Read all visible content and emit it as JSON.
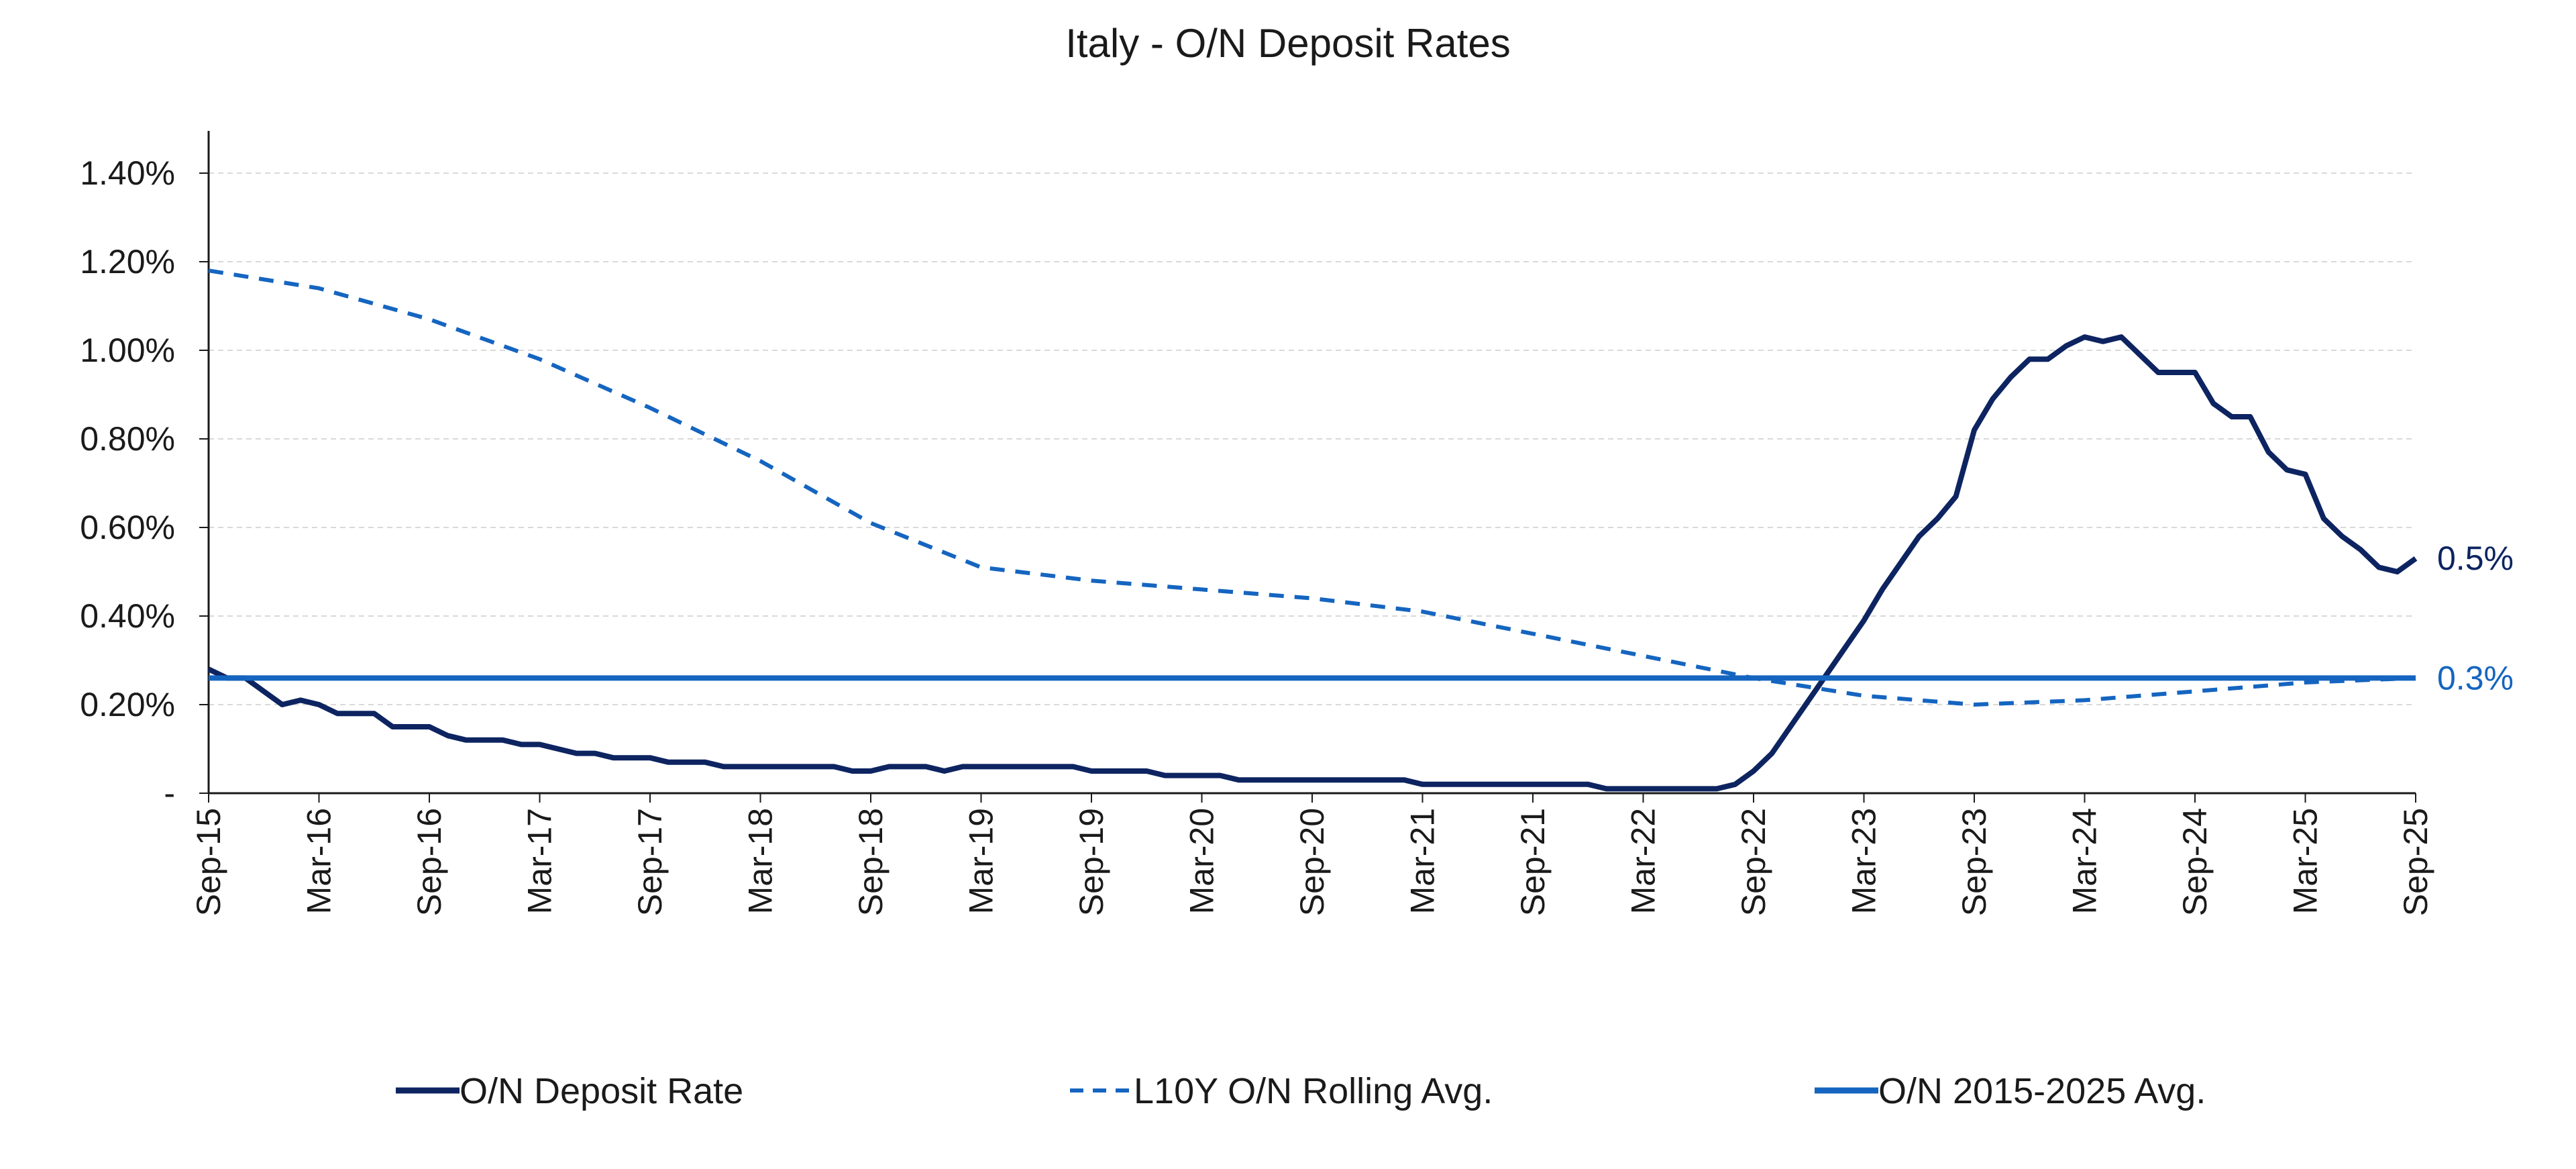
{
  "chart_data": {
    "type": "line",
    "title": "Italy - O/N Deposit Rates",
    "xlabel": "",
    "ylabel": "",
    "ylim": [
      0,
      1.4
    ],
    "y_ticks": [
      {
        "value": 0,
        "label": "-"
      },
      {
        "value": 0.2,
        "label": "0.20%"
      },
      {
        "value": 0.4,
        "label": "0.40%"
      },
      {
        "value": 0.6,
        "label": "0.60%"
      },
      {
        "value": 0.8,
        "label": "0.80%"
      },
      {
        "value": 1.0,
        "label": "1.00%"
      },
      {
        "value": 1.2,
        "label": "1.20%"
      },
      {
        "value": 1.4,
        "label": "1.40%"
      }
    ],
    "x_ticks": [
      "2015-09",
      "2016-03",
      "2016-09",
      "2017-03",
      "2017-09",
      "2018-03",
      "2018-09",
      "2019-03",
      "2019-09",
      "2020-03",
      "2020-09",
      "2021-03",
      "2021-09",
      "2022-03",
      "2022-09",
      "2023-03",
      "2023-09",
      "2024-03",
      "2024-09",
      "2025-03",
      "2025-09"
    ],
    "x_tick_labels": [
      "Sep-15",
      "Mar-16",
      "Sep-16",
      "Mar-17",
      "Sep-17",
      "Mar-18",
      "Sep-18",
      "Mar-19",
      "Sep-19",
      "Mar-20",
      "Sep-20",
      "Mar-21",
      "Sep-21",
      "Mar-22",
      "Sep-22",
      "Mar-23",
      "Sep-23",
      "Mar-24",
      "Sep-24",
      "Mar-25",
      "Sep-25"
    ],
    "grid": true,
    "legend_position": "bottom",
    "series": [
      {
        "name": "O/N Deposit Rate",
        "color": "#0d2461",
        "style": "solid",
        "end_label": "0.5%",
        "points": [
          [
            "2015-09",
            0.28
          ],
          [
            "2015-10",
            0.26
          ],
          [
            "2015-11",
            0.26
          ],
          [
            "2015-12",
            0.23
          ],
          [
            "2016-01",
            0.2
          ],
          [
            "2016-02",
            0.21
          ],
          [
            "2016-03",
            0.2
          ],
          [
            "2016-04",
            0.18
          ],
          [
            "2016-05",
            0.18
          ],
          [
            "2016-06",
            0.18
          ],
          [
            "2016-07",
            0.15
          ],
          [
            "2016-08",
            0.15
          ],
          [
            "2016-09",
            0.15
          ],
          [
            "2016-10",
            0.13
          ],
          [
            "2016-11",
            0.12
          ],
          [
            "2016-12",
            0.12
          ],
          [
            "2017-01",
            0.12
          ],
          [
            "2017-02",
            0.11
          ],
          [
            "2017-03",
            0.11
          ],
          [
            "2017-04",
            0.1
          ],
          [
            "2017-05",
            0.09
          ],
          [
            "2017-06",
            0.09
          ],
          [
            "2017-07",
            0.08
          ],
          [
            "2017-08",
            0.08
          ],
          [
            "2017-09",
            0.08
          ],
          [
            "2017-10",
            0.07
          ],
          [
            "2017-11",
            0.07
          ],
          [
            "2017-12",
            0.07
          ],
          [
            "2018-01",
            0.06
          ],
          [
            "2018-02",
            0.06
          ],
          [
            "2018-03",
            0.06
          ],
          [
            "2018-04",
            0.06
          ],
          [
            "2018-05",
            0.06
          ],
          [
            "2018-06",
            0.06
          ],
          [
            "2018-07",
            0.06
          ],
          [
            "2018-08",
            0.05
          ],
          [
            "2018-09",
            0.05
          ],
          [
            "2018-10",
            0.06
          ],
          [
            "2018-11",
            0.06
          ],
          [
            "2018-12",
            0.06
          ],
          [
            "2019-01",
            0.05
          ],
          [
            "2019-02",
            0.06
          ],
          [
            "2019-03",
            0.06
          ],
          [
            "2019-04",
            0.06
          ],
          [
            "2019-05",
            0.06
          ],
          [
            "2019-06",
            0.06
          ],
          [
            "2019-07",
            0.06
          ],
          [
            "2019-08",
            0.06
          ],
          [
            "2019-09",
            0.05
          ],
          [
            "2019-10",
            0.05
          ],
          [
            "2019-11",
            0.05
          ],
          [
            "2019-12",
            0.05
          ],
          [
            "2020-01",
            0.04
          ],
          [
            "2020-02",
            0.04
          ],
          [
            "2020-03",
            0.04
          ],
          [
            "2020-04",
            0.04
          ],
          [
            "2020-05",
            0.03
          ],
          [
            "2020-06",
            0.03
          ],
          [
            "2020-07",
            0.03
          ],
          [
            "2020-08",
            0.03
          ],
          [
            "2020-09",
            0.03
          ],
          [
            "2020-10",
            0.03
          ],
          [
            "2020-11",
            0.03
          ],
          [
            "2020-12",
            0.03
          ],
          [
            "2021-01",
            0.03
          ],
          [
            "2021-02",
            0.03
          ],
          [
            "2021-03",
            0.02
          ],
          [
            "2021-04",
            0.02
          ],
          [
            "2021-05",
            0.02
          ],
          [
            "2021-06",
            0.02
          ],
          [
            "2021-07",
            0.02
          ],
          [
            "2021-08",
            0.02
          ],
          [
            "2021-09",
            0.02
          ],
          [
            "2021-10",
            0.02
          ],
          [
            "2021-11",
            0.02
          ],
          [
            "2021-12",
            0.02
          ],
          [
            "2022-01",
            0.01
          ],
          [
            "2022-02",
            0.01
          ],
          [
            "2022-03",
            0.01
          ],
          [
            "2022-04",
            0.01
          ],
          [
            "2022-05",
            0.01
          ],
          [
            "2022-06",
            0.01
          ],
          [
            "2022-07",
            0.01
          ],
          [
            "2022-08",
            0.02
          ],
          [
            "2022-09",
            0.05
          ],
          [
            "2022-10",
            0.09
          ],
          [
            "2022-11",
            0.15
          ],
          [
            "2022-12",
            0.21
          ],
          [
            "2023-01",
            0.27
          ],
          [
            "2023-02",
            0.33
          ],
          [
            "2023-03",
            0.39
          ],
          [
            "2023-04",
            0.46
          ],
          [
            "2023-05",
            0.52
          ],
          [
            "2023-06",
            0.58
          ],
          [
            "2023-07",
            0.62
          ],
          [
            "2023-08",
            0.67
          ],
          [
            "2023-09",
            0.82
          ],
          [
            "2023-10",
            0.89
          ],
          [
            "2023-11",
            0.94
          ],
          [
            "2023-12",
            0.98
          ],
          [
            "2024-01",
            0.98
          ],
          [
            "2024-02",
            1.01
          ],
          [
            "2024-03",
            1.03
          ],
          [
            "2024-04",
            1.02
          ],
          [
            "2024-05",
            1.03
          ],
          [
            "2024-06",
            0.99
          ],
          [
            "2024-07",
            0.95
          ],
          [
            "2024-08",
            0.95
          ],
          [
            "2024-09",
            0.95
          ],
          [
            "2024-10",
            0.88
          ],
          [
            "2024-11",
            0.85
          ],
          [
            "2024-12",
            0.85
          ],
          [
            "2025-01",
            0.77
          ],
          [
            "2025-02",
            0.73
          ],
          [
            "2025-03",
            0.72
          ],
          [
            "2025-04",
            0.62
          ],
          [
            "2025-05",
            0.58
          ],
          [
            "2025-06",
            0.55
          ],
          [
            "2025-07",
            0.51
          ],
          [
            "2025-08",
            0.5
          ],
          [
            "2025-09",
            0.53
          ]
        ]
      },
      {
        "name": "L10Y O/N Rolling Avg.",
        "color": "#1565c0",
        "style": "dashed",
        "points": [
          [
            "2015-09",
            1.18
          ],
          [
            "2016-03",
            1.14
          ],
          [
            "2016-09",
            1.07
          ],
          [
            "2017-03",
            0.98
          ],
          [
            "2017-09",
            0.87
          ],
          [
            "2018-03",
            0.75
          ],
          [
            "2018-09",
            0.61
          ],
          [
            "2019-03",
            0.51
          ],
          [
            "2019-09",
            0.48
          ],
          [
            "2020-03",
            0.46
          ],
          [
            "2020-09",
            0.44
          ],
          [
            "2021-03",
            0.41
          ],
          [
            "2021-09",
            0.36
          ],
          [
            "2022-03",
            0.31
          ],
          [
            "2022-09",
            0.26
          ],
          [
            "2023-03",
            0.22
          ],
          [
            "2023-09",
            0.2
          ],
          [
            "2024-03",
            0.21
          ],
          [
            "2024-09",
            0.23
          ],
          [
            "2025-03",
            0.25
          ],
          [
            "2025-09",
            0.26
          ]
        ]
      },
      {
        "name": "O/N 2015-2025 Avg.",
        "color": "#1565c0",
        "style": "solid",
        "end_label": "0.3%",
        "points": [
          [
            "2015-09",
            0.26
          ],
          [
            "2025-09",
            0.26
          ]
        ]
      }
    ]
  }
}
